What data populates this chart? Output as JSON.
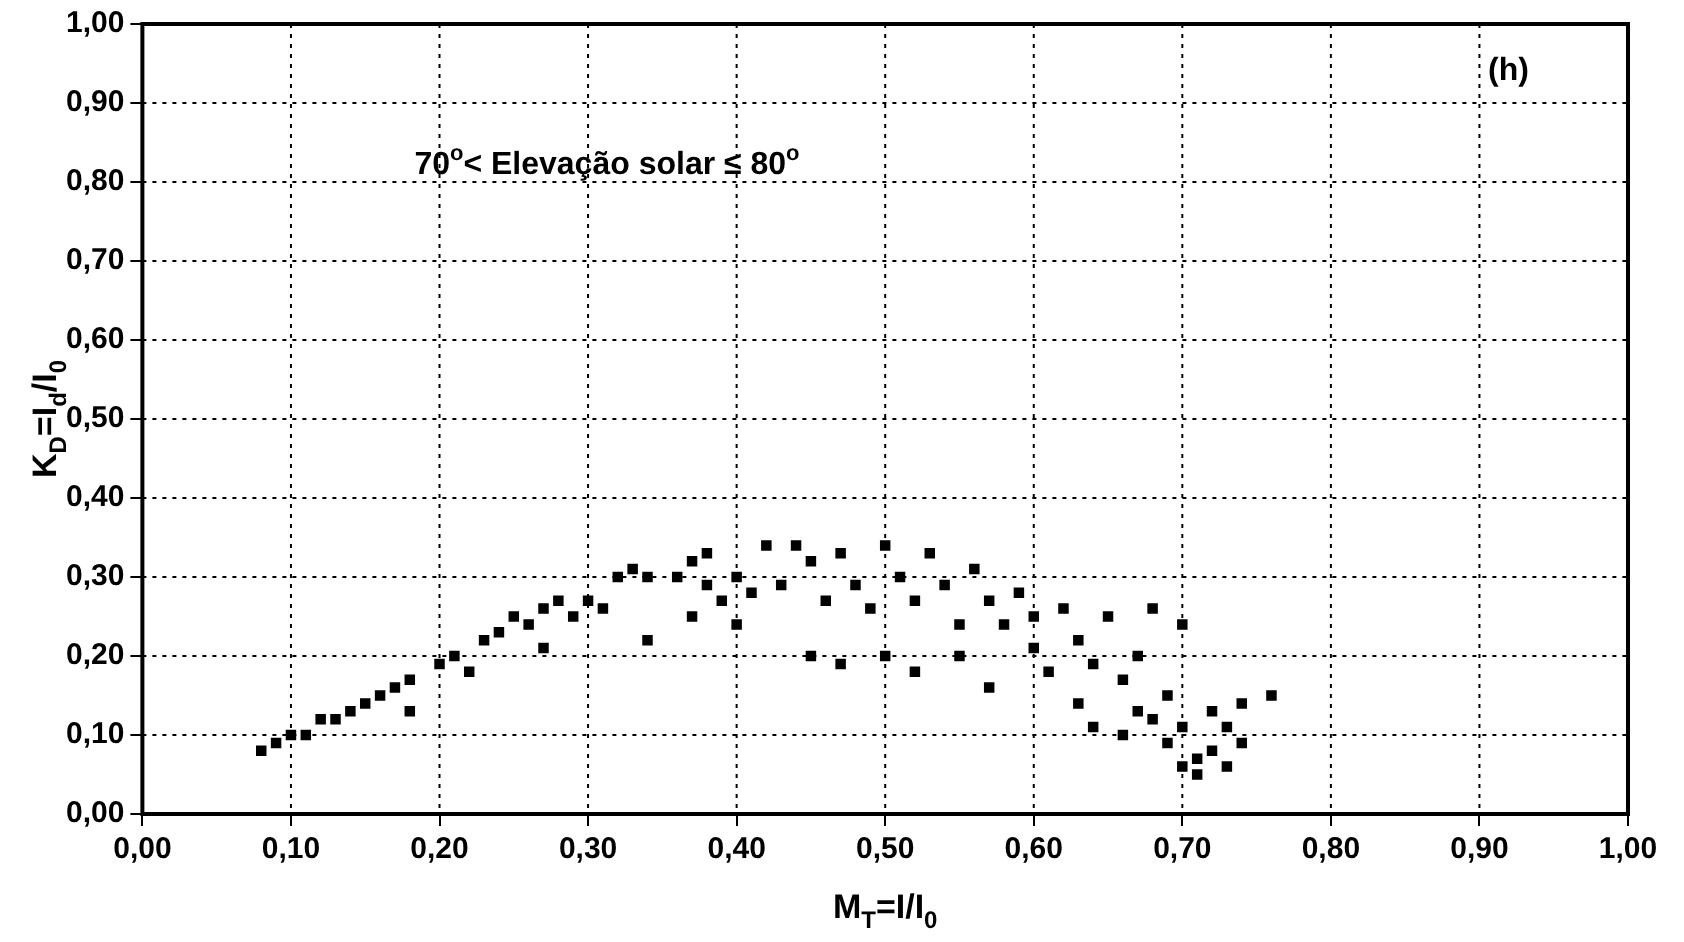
{
  "chart_data": {
    "type": "scatter",
    "xlabel": "M$_{T}$=I/I$_{0}$",
    "ylabel": "K$_{D}$=I$_{d}$/I$_{0}$",
    "annotations": [
      "(h)",
      "70$^{o}$< Elevação solar ≤ 80$^{o}$"
    ],
    "xlim": [
      0,
      1
    ],
    "ylim": [
      0,
      1
    ],
    "xticks": [
      {
        "value": 0,
        "label": "0,00"
      },
      {
        "value": 0.1,
        "label": "0,10"
      },
      {
        "value": 0.2,
        "label": "0,20"
      },
      {
        "value": 0.3,
        "label": "0,30"
      },
      {
        "value": 0.4,
        "label": "0,40"
      },
      {
        "value": 0.5,
        "label": "0,50"
      },
      {
        "value": 0.6,
        "label": "0,60"
      },
      {
        "value": 0.7,
        "label": "0,70"
      },
      {
        "value": 0.8,
        "label": "0,80"
      },
      {
        "value": 0.9,
        "label": "0,90"
      },
      {
        "value": 1,
        "label": "1,00"
      }
    ],
    "yticks": [
      {
        "value": 0,
        "label": "0,00"
      },
      {
        "value": 0.1,
        "label": "0,10"
      },
      {
        "value": 0.2,
        "label": "0,20"
      },
      {
        "value": 0.3,
        "label": "0,30"
      },
      {
        "value": 0.4,
        "label": "0,40"
      },
      {
        "value": 0.5,
        "label": "0,50"
      },
      {
        "value": 0.6,
        "label": "0,60"
      },
      {
        "value": 0.7,
        "label": "0,70"
      },
      {
        "value": 0.8,
        "label": "0,80"
      },
      {
        "value": 0.9,
        "label": "0,90"
      },
      {
        "value": 1,
        "label": "1,00"
      }
    ],
    "grid": true,
    "marker": "square",
    "series": [
      {
        "color": "#000000",
        "x": [
          0.08,
          0.09,
          0.1,
          0.11,
          0.12,
          0.13,
          0.14,
          0.15,
          0.16,
          0.17,
          0.18,
          0.18,
          0.2,
          0.21,
          0.22,
          0.23,
          0.24,
          0.25,
          0.26,
          0.27,
          0.27,
          0.28,
          0.29,
          0.3,
          0.31,
          0.32,
          0.33,
          0.34,
          0.34,
          0.36,
          0.37,
          0.37,
          0.38,
          0.38,
          0.39,
          0.4,
          0.4,
          0.41,
          0.42,
          0.43,
          0.44,
          0.45,
          0.45,
          0.46,
          0.47,
          0.47,
          0.48,
          0.49,
          0.5,
          0.5,
          0.51,
          0.52,
          0.52,
          0.53,
          0.54,
          0.55,
          0.55,
          0.56,
          0.57,
          0.57,
          0.58,
          0.59,
          0.6,
          0.6,
          0.61,
          0.62,
          0.63,
          0.63,
          0.64,
          0.64,
          0.65,
          0.66,
          0.66,
          0.67,
          0.67,
          0.68,
          0.68,
          0.69,
          0.69,
          0.7,
          0.7,
          0.7,
          0.71,
          0.71,
          0.72,
          0.72,
          0.73,
          0.73,
          0.74,
          0.74,
          0.76
        ],
        "values": [
          0.08,
          0.09,
          0.1,
          0.1,
          0.12,
          0.12,
          0.13,
          0.14,
          0.15,
          0.16,
          0.13,
          0.17,
          0.19,
          0.2,
          0.18,
          0.22,
          0.23,
          0.25,
          0.24,
          0.26,
          0.21,
          0.27,
          0.25,
          0.27,
          0.26,
          0.3,
          0.31,
          0.3,
          0.22,
          0.3,
          0.32,
          0.25,
          0.33,
          0.29,
          0.27,
          0.24,
          0.3,
          0.28,
          0.34,
          0.29,
          0.34,
          0.32,
          0.2,
          0.27,
          0.33,
          0.19,
          0.29,
          0.26,
          0.34,
          0.2,
          0.3,
          0.27,
          0.18,
          0.33,
          0.29,
          0.24,
          0.2,
          0.31,
          0.27,
          0.16,
          0.24,
          0.28,
          0.21,
          0.25,
          0.18,
          0.26,
          0.22,
          0.14,
          0.19,
          0.11,
          0.25,
          0.17,
          0.1,
          0.2,
          0.13,
          0.12,
          0.26,
          0.15,
          0.09,
          0.06,
          0.24,
          0.11,
          0.07,
          0.05,
          0.08,
          0.13,
          0.06,
          0.11,
          0.09,
          0.14,
          0.15
        ]
      }
    ]
  }
}
